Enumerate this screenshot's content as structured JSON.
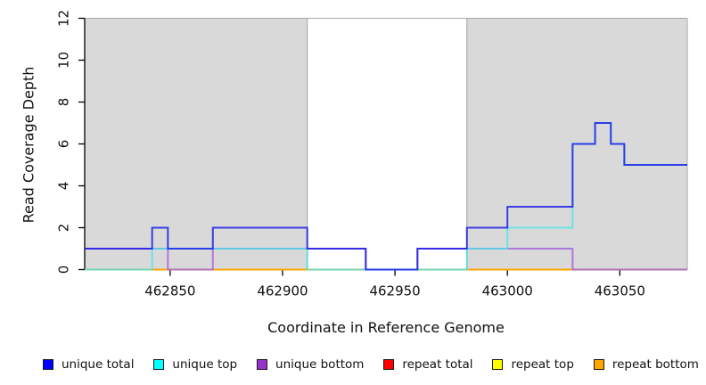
{
  "figure": {
    "background": "#FFFFFF",
    "shaded_band_color": "#D9D9D9",
    "region_border_color": "#A9A9A9",
    "axis_color": "#000000"
  },
  "chart_data": {
    "type": "line",
    "subtype": "step-coverage-plot",
    "title": "",
    "xlabel": "Coordinate in Reference Genome",
    "ylabel": "Read Coverage Depth",
    "xlim": [
      462812,
      463080
    ],
    "ylim": [
      0,
      12
    ],
    "x_ticks": [
      462850,
      462900,
      462950,
      463000,
      463050
    ],
    "y_ticks": [
      0,
      2,
      4,
      6,
      8,
      10,
      12
    ],
    "grid": false,
    "legend_position": "bottom",
    "shaded_regions": [
      {
        "from": 462812,
        "to": 462911,
        "fill": "#D9D9D9"
      },
      {
        "from": 462911,
        "to": 462982,
        "fill": "#FFFFFF"
      },
      {
        "from": 462982,
        "to": 463080,
        "fill": "#D9D9D9"
      }
    ],
    "x_end": 463080,
    "series": [
      {
        "name": "unique total",
        "legend_color": "#0000FF",
        "line_color": "#1A1AE6",
        "line_opacity": 0.82,
        "steps": [
          [
            462812,
            1
          ],
          [
            462842,
            2
          ],
          [
            462849,
            1
          ],
          [
            462869,
            2
          ],
          [
            462911,
            1
          ],
          [
            462937,
            0
          ],
          [
            462960,
            1
          ],
          [
            462982,
            2
          ],
          [
            463000,
            3
          ],
          [
            463029,
            6
          ],
          [
            463039,
            7
          ],
          [
            463046,
            6
          ],
          [
            463052,
            5
          ]
        ]
      },
      {
        "name": "unique top",
        "legend_color": "#00FFFF",
        "line_color": "#49E3E9",
        "line_opacity": 0.75,
        "steps": [
          [
            462812,
            0
          ],
          [
            462842,
            1
          ],
          [
            462911,
            0
          ],
          [
            462982,
            1
          ],
          [
            463000,
            2
          ],
          [
            463029,
            6
          ],
          [
            463039,
            7
          ],
          [
            463046,
            6
          ],
          [
            463052,
            5
          ]
        ]
      },
      {
        "name": "unique bottom",
        "legend_color": "#9932CC",
        "line_color": "#A866D9",
        "line_opacity": 0.85,
        "steps": [
          [
            462812,
            1
          ],
          [
            462849,
            0
          ],
          [
            462869,
            1
          ],
          [
            462937,
            0
          ],
          [
            462960,
            1
          ],
          [
            463029,
            0
          ]
        ]
      },
      {
        "name": "repeat total",
        "legend_color": "#FF0000",
        "line_color": "#E03030",
        "line_opacity": 1,
        "steps": [
          [
            462812,
            0
          ]
        ]
      },
      {
        "name": "repeat top",
        "legend_color": "#FFFF00",
        "line_color": "#E8E855",
        "line_opacity": 1,
        "steps": [
          [
            462812,
            0
          ]
        ]
      },
      {
        "name": "repeat bottom",
        "legend_color": "#FFA500",
        "line_color": "#FFA500",
        "line_opacity": 1,
        "steps": [
          [
            462812,
            0
          ]
        ]
      }
    ],
    "draw_order": [
      "repeat top",
      "repeat total",
      "repeat bottom",
      "unique bottom",
      "unique top",
      "unique total"
    ]
  },
  "legend": {
    "items": [
      {
        "label": "unique total",
        "color": "#0000FF"
      },
      {
        "label": "unique top",
        "color": "#00FFFF"
      },
      {
        "label": "unique bottom",
        "color": "#9932CC"
      },
      {
        "label": "repeat total",
        "color": "#FF0000"
      },
      {
        "label": "repeat top",
        "color": "#FFFF00"
      },
      {
        "label": "repeat bottom",
        "color": "#FFA500"
      }
    ]
  }
}
